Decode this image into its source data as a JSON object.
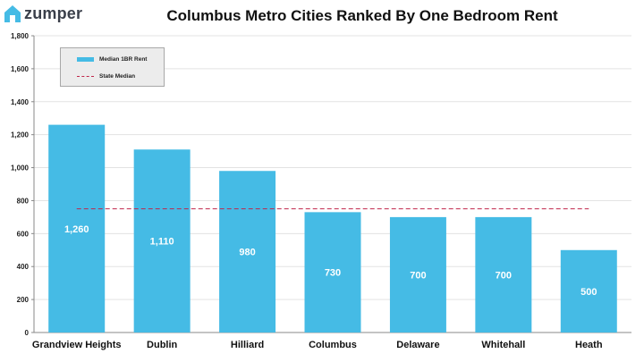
{
  "brand": {
    "name": "zumper",
    "icon": "house-icon",
    "color": "#3a3f4a"
  },
  "colors": {
    "bar": "#45bbe5",
    "reference_line": "#c0264a",
    "bar_label": "#ffffff",
    "grid": "#e3e3e3"
  },
  "chart_data": {
    "type": "bar",
    "title": "Columbus Metro Cities Ranked By One Bedroom Rent",
    "categories": [
      "Grandview Heights",
      "Dublin",
      "Hilliard",
      "Columbus",
      "Delaware",
      "Whitehall",
      "Heath"
    ],
    "series": [
      {
        "name": "Median 1BR Rent",
        "values": [
          1260,
          1110,
          980,
          730,
          700,
          700,
          500
        ]
      }
    ],
    "value_labels": [
      "1,260",
      "1,110",
      "980",
      "730",
      "700",
      "700",
      "500"
    ],
    "reference_line": {
      "name": "State Median",
      "value": 750,
      "style": "dashed"
    },
    "y_ticks": [
      "0",
      "200",
      "400",
      "600",
      "800",
      "1,000",
      "1,200",
      "1,400",
      "1,600",
      "1,800"
    ],
    "ylim": [
      0,
      1800
    ],
    "xlabel": "",
    "ylabel": "",
    "grid": true,
    "legend_position": "top-left"
  }
}
